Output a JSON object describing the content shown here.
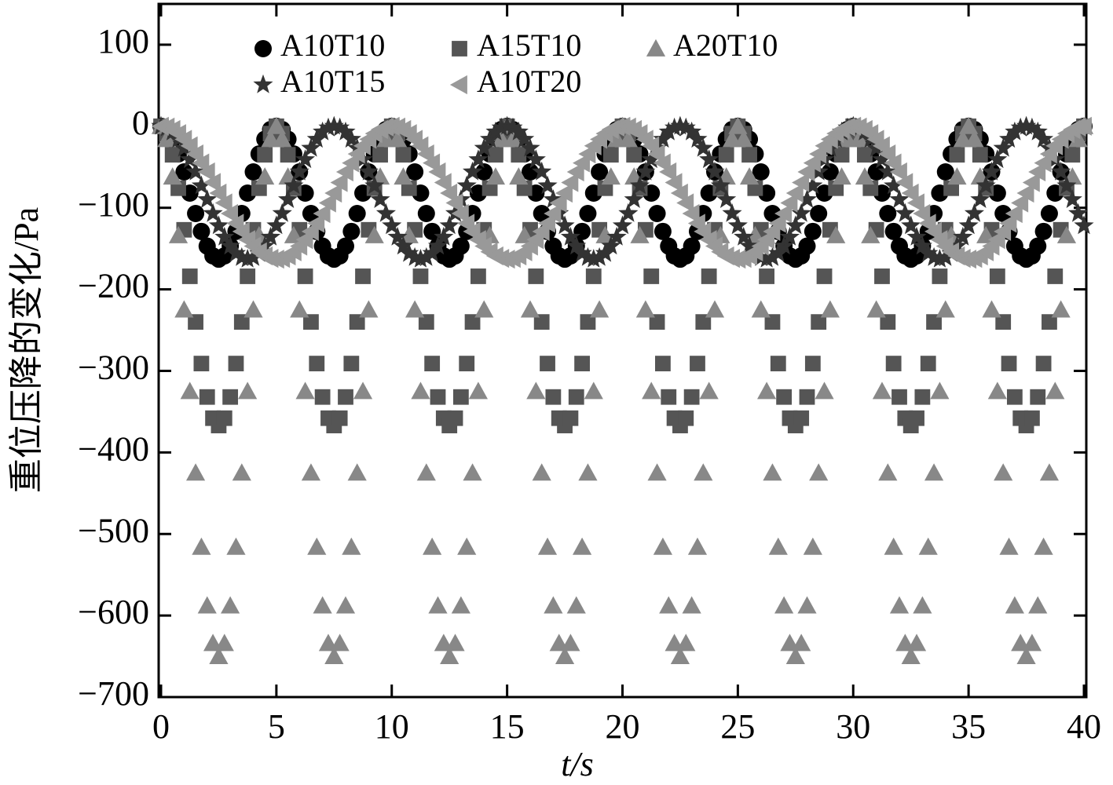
{
  "chart_data": {
    "type": "scatter",
    "xlabel": "t/s",
    "ylabel": "重位压降的变化/Pa",
    "xlim": [
      0,
      40
    ],
    "ylim": [
      -700,
      150
    ],
    "xticks": [
      0,
      5,
      10,
      15,
      20,
      25,
      30,
      35,
      40
    ],
    "yticks": [
      {
        "value": -700,
        "label": "−700"
      },
      {
        "value": -600,
        "label": "−600"
      },
      {
        "value": -500,
        "label": "−500"
      },
      {
        "value": -400,
        "label": "−400"
      },
      {
        "value": -300,
        "label": "−300"
      },
      {
        "value": -200,
        "label": "−200"
      },
      {
        "value": -100,
        "label": "−100"
      },
      0,
      100
    ],
    "x": [
      0,
      0.25,
      0.5,
      0.75,
      1,
      1.25,
      1.5,
      1.75,
      2,
      2.25,
      2.5,
      2.75,
      3,
      3.25,
      3.5,
      3.75,
      4,
      4.25,
      4.5,
      4.75,
      5,
      5.25,
      5.5,
      5.75,
      6,
      6.25,
      6.5,
      6.75,
      7,
      7.25,
      7.5,
      7.75,
      8,
      8.25,
      8.5,
      8.75,
      9,
      9.25,
      9.5,
      9.75,
      10,
      10.25,
      10.5,
      10.75,
      11,
      11.25,
      11.5,
      11.75,
      12,
      12.25,
      12.5,
      12.75,
      13,
      13.25,
      13.5,
      13.75,
      14,
      14.25,
      14.5,
      14.75,
      15,
      15.25,
      15.5,
      15.75,
      16,
      16.25,
      16.5,
      16.75,
      17,
      17.25,
      17.5,
      17.75,
      18,
      18.25,
      18.5,
      18.75,
      19,
      19.25,
      19.5,
      19.75,
      20,
      20.25,
      20.5,
      20.75,
      21,
      21.25,
      21.5,
      21.75,
      22,
      22.25,
      22.5,
      22.75,
      23,
      23.25,
      23.5,
      23.75,
      24,
      24.25,
      24.5,
      24.75,
      25,
      25.25,
      25.5,
      25.75,
      26,
      26.25,
      26.5,
      26.75,
      27,
      27.25,
      27.5,
      27.75,
      28,
      28.25,
      28.5,
      28.75,
      29,
      29.25,
      29.5,
      29.75,
      30,
      30.25,
      30.5,
      30.75,
      31,
      31.25,
      31.5,
      31.75,
      32,
      32.25,
      32.5,
      32.75,
      33,
      33.25,
      33.5,
      33.75,
      34,
      34.25,
      34.5,
      34.75,
      35,
      35.25,
      35.5,
      35.75,
      36,
      36.25,
      36.5,
      36.75,
      37,
      37.25,
      37.5,
      37.75,
      38,
      38.25,
      38.5,
      38.75,
      39,
      39.25,
      39.5,
      39.75,
      40
    ],
    "series": [
      {
        "name": "A10T10",
        "marker": "circle",
        "color": "#000000",
        "values": [
          0,
          -4,
          -16,
          -34,
          -56,
          -82,
          -107,
          -129,
          -147,
          -159,
          -163,
          -159,
          -147,
          -129,
          -107,
          -82,
          -56,
          -34,
          -16,
          -4,
          0,
          -4,
          -16,
          -34,
          -56,
          -82,
          -107,
          -129,
          -147,
          -159,
          -163,
          -159,
          -147,
          -129,
          -107,
          -82,
          -56,
          -34,
          -16,
          -4,
          0,
          -4,
          -16,
          -34,
          -56,
          -82,
          -107,
          -129,
          -147,
          -159,
          -163,
          -159,
          -147,
          -129,
          -107,
          -82,
          -56,
          -34,
          -16,
          -4,
          0,
          -4,
          -16,
          -34,
          -56,
          -82,
          -107,
          -129,
          -147,
          -159,
          -163,
          -159,
          -147,
          -129,
          -107,
          -82,
          -56,
          -34,
          -16,
          -4,
          0,
          -4,
          -16,
          -34,
          -56,
          -82,
          -107,
          -129,
          -147,
          -159,
          -163,
          -159,
          -147,
          -129,
          -107,
          -82,
          -56,
          -34,
          -16,
          -4,
          0,
          -4,
          -16,
          -34,
          -56,
          -82,
          -107,
          -129,
          -147,
          -159,
          -163,
          -159,
          -147,
          -129,
          -107,
          -82,
          -56,
          -34,
          -16,
          -4,
          0,
          -4,
          -16,
          -34,
          -56,
          -82,
          -107,
          -129,
          -147,
          -159,
          -163,
          -159,
          -147,
          -129,
          -107,
          -82,
          -56,
          -34,
          -16,
          -4,
          0,
          -4,
          -16,
          -34,
          -56,
          -82,
          -107,
          -129,
          -147,
          -159,
          -163,
          -159,
          -147,
          -129,
          -107,
          -82,
          -56,
          -34,
          -16,
          -4,
          0
        ]
      },
      {
        "name": "A15T10",
        "marker": "square",
        "color": "#555555",
        "values": [
          0,
          -9,
          -35,
          -76,
          -127,
          -184,
          -240,
          -291,
          -332,
          -358,
          -367,
          -358,
          -332,
          -291,
          -240,
          -184,
          -127,
          -76,
          -35,
          -9,
          0,
          -9,
          -35,
          -76,
          -127,
          -184,
          -240,
          -291,
          -332,
          -358,
          -367,
          -358,
          -332,
          -291,
          -240,
          -184,
          -127,
          -76,
          -35,
          -9,
          0,
          -9,
          -35,
          -76,
          -127,
          -184,
          -240,
          -291,
          -332,
          -358,
          -367,
          -358,
          -332,
          -291,
          -240,
          -184,
          -127,
          -76,
          -35,
          -9,
          0,
          -9,
          -35,
          -76,
          -127,
          -184,
          -240,
          -291,
          -332,
          -358,
          -367,
          -358,
          -332,
          -291,
          -240,
          -184,
          -127,
          -76,
          -35,
          -9,
          0,
          -9,
          -35,
          -76,
          -127,
          -184,
          -240,
          -291,
          -332,
          -358,
          -367,
          -358,
          -332,
          -291,
          -240,
          -184,
          -127,
          -76,
          -35,
          -9,
          0,
          -9,
          -35,
          -76,
          -127,
          -184,
          -240,
          -291,
          -332,
          -358,
          -367,
          -358,
          -332,
          -291,
          -240,
          -184,
          -127,
          -76,
          -35,
          -9,
          0,
          -9,
          -35,
          -76,
          -127,
          -184,
          -240,
          -291,
          -332,
          -358,
          -367,
          -358,
          -332,
          -291,
          -240,
          -184,
          -127,
          -76,
          -35,
          -9,
          0,
          -9,
          -35,
          -76,
          -127,
          -184,
          -240,
          -291,
          -332,
          -358,
          -367,
          -358,
          -332,
          -291,
          -240,
          -184,
          -127,
          -76,
          -35,
          -9,
          0
        ]
      },
      {
        "name": "A20T10",
        "marker": "triangle-up",
        "color": "#888888",
        "values": [
          0,
          -16,
          -62,
          -134,
          -225,
          -325,
          -425,
          -516,
          -588,
          -634,
          -650,
          -634,
          -588,
          -516,
          -425,
          -325,
          -225,
          -134,
          -62,
          -16,
          0,
          -16,
          -62,
          -134,
          -225,
          -325,
          -425,
          -516,
          -588,
          -634,
          -650,
          -634,
          -588,
          -516,
          -425,
          -325,
          -225,
          -134,
          -62,
          -16,
          0,
          -16,
          -62,
          -134,
          -225,
          -325,
          -425,
          -516,
          -588,
          -634,
          -650,
          -634,
          -588,
          -516,
          -425,
          -325,
          -225,
          -134,
          -62,
          -16,
          0,
          -16,
          -62,
          -134,
          -225,
          -325,
          -425,
          -516,
          -588,
          -634,
          -650,
          -634,
          -588,
          -516,
          -425,
          -325,
          -225,
          -134,
          -62,
          -16,
          0,
          -16,
          -62,
          -134,
          -225,
          -325,
          -425,
          -516,
          -588,
          -634,
          -650,
          -634,
          -588,
          -516,
          -425,
          -325,
          -225,
          -134,
          -62,
          -16,
          0,
          -16,
          -62,
          -134,
          -225,
          -325,
          -425,
          -516,
          -588,
          -634,
          -650,
          -634,
          -588,
          -516,
          -425,
          -325,
          -225,
          -134,
          -62,
          -16,
          0,
          -16,
          -62,
          -134,
          -225,
          -325,
          -425,
          -516,
          -588,
          -634,
          -650,
          -634,
          -588,
          -516,
          -425,
          -325,
          -225,
          -134,
          -62,
          -16,
          0,
          -16,
          -62,
          -134,
          -225,
          -325,
          -425,
          -516,
          -588,
          -634,
          -650,
          -634,
          -588,
          -516,
          -425,
          -325,
          -225,
          -134,
          -62,
          -16,
          0
        ]
      },
      {
        "name": "A10T15",
        "marker": "star",
        "color": "#333333",
        "values": [
          0,
          -2,
          -7,
          -16,
          -27,
          -41,
          -56,
          -73,
          -90,
          -107,
          -122,
          -136,
          -147,
          -156,
          -161,
          -163,
          -161,
          -156,
          -147,
          -136,
          -122,
          -107,
          -90,
          -73,
          -56,
          -41,
          -27,
          -16,
          -7,
          -2,
          0,
          -2,
          -7,
          -16,
          -27,
          -41,
          -56,
          -73,
          -90,
          -107,
          -122,
          -136,
          -147,
          -156,
          -161,
          -163,
          -161,
          -156,
          -147,
          -136,
          -122,
          -107,
          -90,
          -73,
          -56,
          -41,
          -27,
          -16,
          -7,
          -2,
          0,
          -2,
          -7,
          -16,
          -27,
          -41,
          -56,
          -73,
          -90,
          -107,
          -122,
          -136,
          -147,
          -156,
          -161,
          -163,
          -161,
          -156,
          -147,
          -136,
          -122,
          -107,
          -90,
          -73,
          -56,
          -41,
          -27,
          -16,
          -7,
          -2,
          0,
          -2,
          -7,
          -16,
          -27,
          -41,
          -56,
          -73,
          -90,
          -107,
          -122,
          -136,
          -147,
          -156,
          -161,
          -163,
          -161,
          -156,
          -147,
          -136,
          -122,
          -107,
          -90,
          -73,
          -56,
          -41,
          -27,
          -16,
          -7,
          -2,
          0,
          -2,
          -7,
          -16,
          -27,
          -41,
          -56,
          -73,
          -90,
          -107,
          -122,
          -136,
          -147,
          -156,
          -161,
          -163,
          -161,
          -156,
          -147,
          -136,
          -122,
          -107,
          -90,
          -73,
          -56,
          -41,
          -27,
          -16,
          -7,
          -2,
          0,
          -2,
          -7,
          -16,
          -27,
          -41,
          -56,
          -73,
          -90,
          -107,
          -122
        ]
      },
      {
        "name": "A10T20",
        "marker": "triangle-left",
        "color": "#999999",
        "values": [
          0,
          -1,
          -4,
          -9,
          -16,
          -24,
          -34,
          -45,
          -56,
          -69,
          -82,
          -94,
          -107,
          -119,
          -129,
          -139,
          -147,
          -154,
          -159,
          -162,
          -163,
          -162,
          -159,
          -154,
          -147,
          -139,
          -129,
          -119,
          -107,
          -94,
          -82,
          -69,
          -56,
          -45,
          -34,
          -24,
          -16,
          -9,
          -4,
          -1,
          0,
          -1,
          -4,
          -9,
          -16,
          -24,
          -34,
          -45,
          -56,
          -69,
          -82,
          -94,
          -107,
          -119,
          -129,
          -139,
          -147,
          -154,
          -159,
          -162,
          -163,
          -162,
          -159,
          -154,
          -147,
          -139,
          -129,
          -119,
          -107,
          -94,
          -82,
          -69,
          -56,
          -45,
          -34,
          -24,
          -16,
          -9,
          -4,
          -1,
          0,
          -1,
          -4,
          -9,
          -16,
          -24,
          -34,
          -45,
          -56,
          -69,
          -82,
          -94,
          -107,
          -119,
          -129,
          -139,
          -147,
          -154,
          -159,
          -162,
          -163,
          -162,
          -159,
          -154,
          -147,
          -139,
          -129,
          -119,
          -107,
          -94,
          -82,
          -69,
          -56,
          -45,
          -34,
          -24,
          -16,
          -9,
          -4,
          -1,
          0,
          -1,
          -4,
          -9,
          -16,
          -24,
          -34,
          -45,
          -56,
          -69,
          -82,
          -94,
          -107,
          -119,
          -129,
          -139,
          -147,
          -154,
          -159,
          -162,
          -163,
          -162,
          -159,
          -154,
          -147,
          -139,
          -129,
          -119,
          -107,
          -94,
          -82,
          -69,
          -56,
          -45,
          -34,
          -24,
          -16,
          -9,
          -4,
          -1,
          0
        ]
      }
    ]
  }
}
